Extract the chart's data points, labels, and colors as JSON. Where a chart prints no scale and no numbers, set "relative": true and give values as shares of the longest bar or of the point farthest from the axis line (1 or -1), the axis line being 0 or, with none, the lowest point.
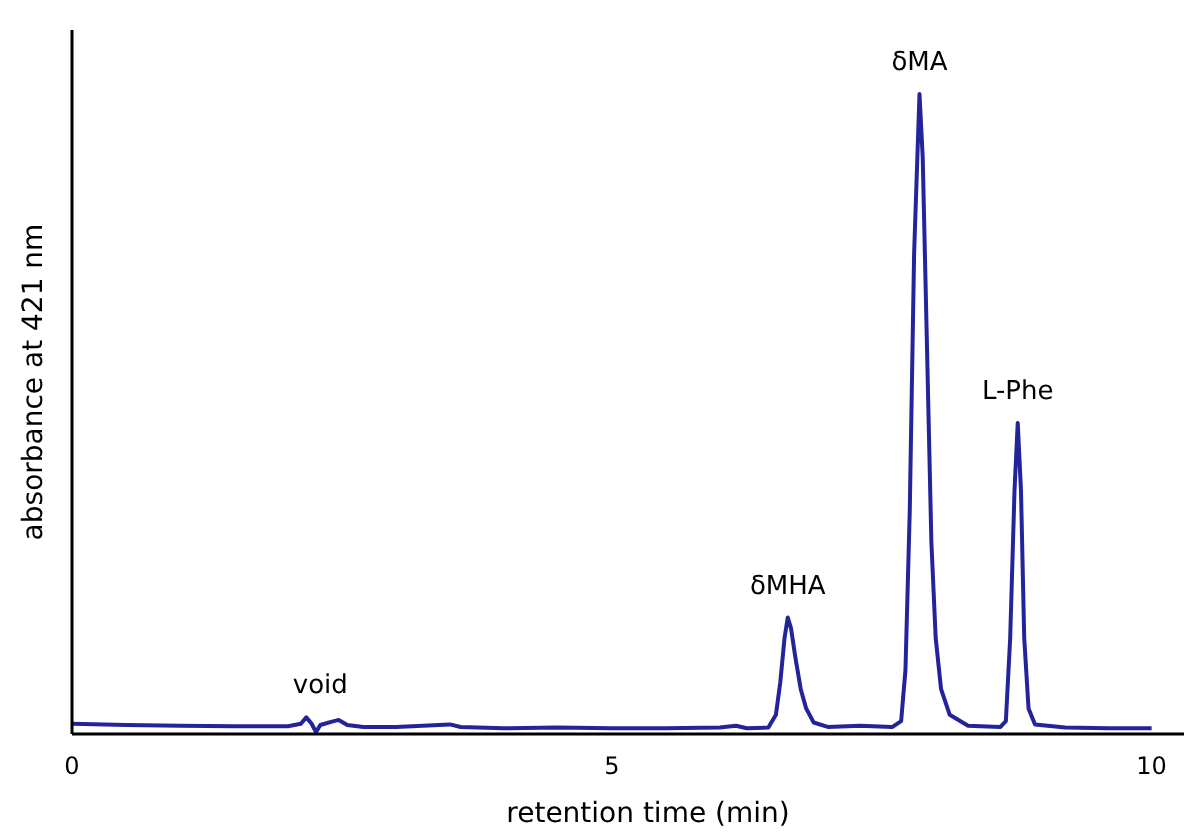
{
  "chart_data": {
    "type": "line",
    "relative": true,
    "xlabel": "retention time (min)",
    "ylabel": "absorbance at 421 nm",
    "xlim": [
      0,
      10.3
    ],
    "xticks": [
      0,
      5,
      10
    ],
    "grid": false,
    "marker": "none",
    "line_style": "solid",
    "series": [
      {
        "color": "#23239a",
        "x": [
          0,
          0.5,
          1.0,
          1.5,
          2.0,
          2.12,
          2.17,
          2.22,
          2.26,
          2.3,
          2.4,
          2.47,
          2.55,
          2.7,
          3.0,
          3.5,
          3.6,
          4,
          4.5,
          5,
          5.5,
          6.0,
          6.15,
          6.25,
          6.45,
          6.52,
          6.56,
          6.6,
          6.63,
          6.66,
          6.7,
          6.75,
          6.8,
          6.87,
          7.0,
          7.3,
          7.6,
          7.68,
          7.72,
          7.76,
          7.8,
          7.85,
          7.88,
          7.92,
          7.96,
          8.0,
          8.05,
          8.13,
          8.3,
          8.6,
          8.65,
          8.69,
          8.73,
          8.76,
          8.79,
          8.82,
          8.86,
          8.92,
          9.2,
          9.6,
          10
        ],
        "values": [
          0.016,
          0.014,
          0.013,
          0.012,
          0.012,
          0.016,
          0.026,
          0.016,
          0.003,
          0.014,
          0.019,
          0.022,
          0.014,
          0.011,
          0.011,
          0.015,
          0.011,
          0.009,
          0.01,
          0.009,
          0.009,
          0.01,
          0.013,
          0.009,
          0.01,
          0.03,
          0.08,
          0.15,
          0.182,
          0.165,
          0.12,
          0.07,
          0.04,
          0.018,
          0.011,
          0.013,
          0.011,
          0.02,
          0.1,
          0.35,
          0.75,
          1.0,
          0.9,
          0.6,
          0.3,
          0.15,
          0.07,
          0.03,
          0.013,
          0.011,
          0.02,
          0.15,
          0.38,
          0.486,
          0.38,
          0.15,
          0.04,
          0.015,
          0.01,
          0.009,
          0.009
        ]
      }
    ],
    "annotations": [
      {
        "text": "void",
        "x": 2.3,
        "y": 0.026
      },
      {
        "text": "δMHA",
        "x": 6.63,
        "y": 0.182
      },
      {
        "text": "δMA",
        "x": 7.85,
        "y": 1.0
      },
      {
        "text": "L-Phe",
        "x": 8.76,
        "y": 0.486
      }
    ]
  }
}
